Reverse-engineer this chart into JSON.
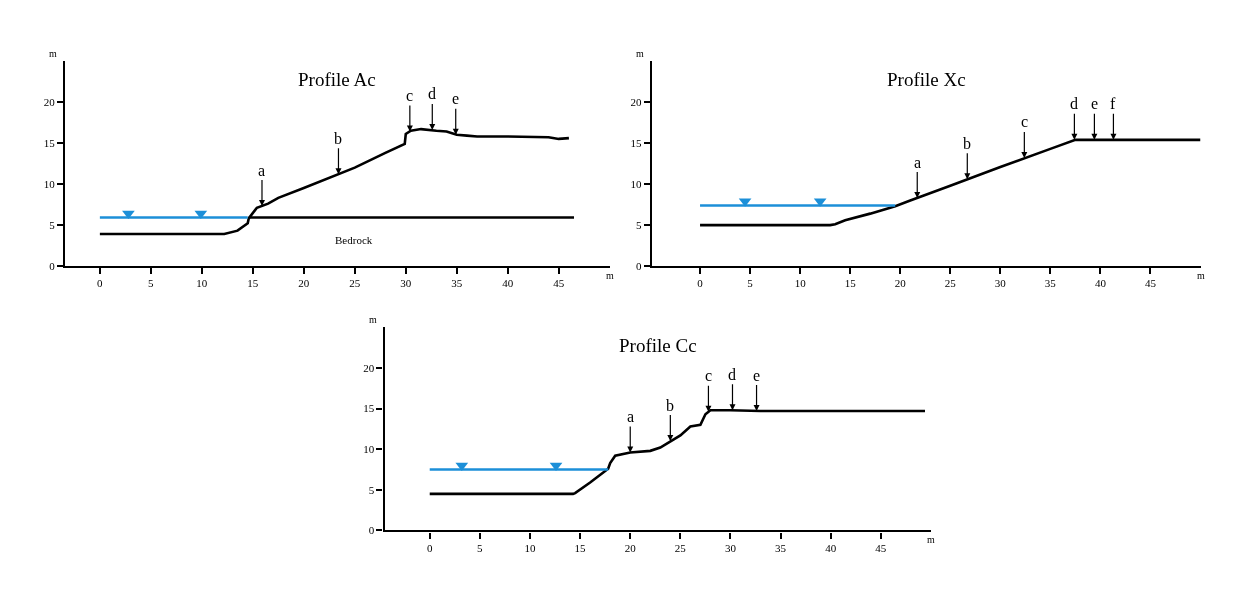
{
  "chart_data": [
    {
      "type": "line",
      "title": "Profile Ac",
      "xlabel": "m",
      "ylabel": "m",
      "xlim": [
        -3.4,
        50
      ],
      "ylim": [
        0,
        25
      ],
      "xticks": [
        0,
        5,
        10,
        15,
        20,
        25,
        30,
        35,
        40,
        45
      ],
      "yticks": [
        0,
        5,
        10,
        15,
        20
      ],
      "series": [
        {
          "x": [
            0,
            12.2,
            13.5,
            14.5,
            14.6,
            15.4,
            16.5,
            17.5,
            20,
            25,
            28,
            29.9,
            30,
            30.5,
            31.5,
            33,
            34,
            35,
            36,
            37,
            40,
            44,
            45,
            46
          ],
          "values": [
            3.9,
            3.9,
            4.3,
            5.2,
            5.8,
            7.1,
            7.6,
            8.3,
            9.5,
            12.0,
            13.8,
            14.9,
            16.1,
            16.5,
            16.7,
            16.5,
            16.4,
            16.0,
            15.9,
            15.8,
            15.8,
            15.7,
            15.5,
            15.6
          ],
          "color": "#000000"
        },
        {
          "x": [
            14.6,
            46.5
          ],
          "values": [
            5.9,
            5.9
          ],
          "color": "#000000"
        },
        {
          "x": [
            0,
            14.5
          ],
          "values": [
            5.9,
            5.9
          ],
          "color": "#1c8fd8"
        },
        {
          "type": "scatter",
          "marker": "triangle",
          "x": [
            2.8,
            9.9
          ],
          "values": [
            6.4,
            6.4
          ],
          "color": "#1c8fd8"
        }
      ],
      "annotations": [
        {
          "text": "a",
          "x": 15.9,
          "y": 7.3
        },
        {
          "text": "b",
          "x": 23.4,
          "y": 11.2
        },
        {
          "text": "c",
          "x": 30.4,
          "y": 16.4
        },
        {
          "text": "d",
          "x": 32.6,
          "y": 16.6
        },
        {
          "text": "e",
          "x": 34.9,
          "y": 16.0
        },
        {
          "text": "Bedrock",
          "x": 24.9,
          "y": 5.9
        }
      ]
    },
    {
      "type": "line",
      "title": "Profile Xc",
      "xlabel": "m",
      "ylabel": "m",
      "xlim": [
        -4.8,
        50
      ],
      "ylim": [
        0,
        25
      ],
      "xticks": [
        0,
        5,
        10,
        15,
        20,
        25,
        30,
        35,
        40,
        45
      ],
      "yticks": [
        0,
        5,
        10,
        15,
        20
      ],
      "series": [
        {
          "x": [
            0,
            13,
            13.5,
            14.5,
            17,
            19.5,
            21,
            25,
            30,
            35,
            37.5,
            50
          ],
          "values": [
            5.0,
            5.0,
            5.1,
            5.6,
            6.4,
            7.3,
            8.0,
            9.8,
            12.1,
            14.3,
            15.4,
            15.4
          ],
          "color": "#000000"
        },
        {
          "x": [
            0,
            19.5
          ],
          "values": [
            7.4,
            7.4
          ],
          "color": "#1c8fd8"
        },
        {
          "type": "scatter",
          "marker": "triangle",
          "x": [
            4.5,
            12
          ],
          "values": [
            7.9,
            7.9
          ],
          "color": "#1c8fd8"
        }
      ],
      "annotations": [
        {
          "text": "a",
          "x": 21.7,
          "y": 8.3
        },
        {
          "text": "b",
          "x": 26.7,
          "y": 10.6
        },
        {
          "text": "c",
          "x": 32.4,
          "y": 13.2
        },
        {
          "text": "d",
          "x": 37.4,
          "y": 15.4
        },
        {
          "text": "e",
          "x": 39.4,
          "y": 15.4
        },
        {
          "text": "f",
          "x": 41.3,
          "y": 15.4
        }
      ]
    },
    {
      "type": "line",
      "title": "Profile Cc",
      "xlabel": "m",
      "ylabel": "m",
      "xlim": [
        -4.5,
        50
      ],
      "ylim": [
        0,
        25
      ],
      "xticks": [
        0,
        5,
        10,
        15,
        20,
        25,
        30,
        35,
        40,
        45
      ],
      "yticks": [
        0,
        5,
        10,
        15,
        20
      ],
      "series": [
        {
          "x": [
            0,
            14.3,
            14.5,
            16,
            17.8,
            18,
            18.5,
            20,
            22,
            23,
            25,
            26,
            27,
            27.5,
            28,
            30,
            33,
            49.4
          ],
          "values": [
            4.5,
            4.5,
            4.6,
            5.9,
            7.6,
            8.3,
            9.2,
            9.6,
            9.8,
            10.2,
            11.7,
            12.8,
            13.0,
            14.3,
            14.8,
            14.8,
            14.7,
            14.7
          ],
          "color": "#000000"
        },
        {
          "x": [
            0,
            17.8
          ],
          "values": [
            7.5,
            7.5
          ],
          "color": "#1c8fd8"
        },
        {
          "type": "scatter",
          "marker": "triangle",
          "x": [
            3.2,
            12.6
          ],
          "values": [
            8.0,
            8.0
          ],
          "color": "#1c8fd8"
        }
      ],
      "annotations": [
        {
          "text": "a",
          "x": 20.0,
          "y": 9.6
        },
        {
          "text": "b",
          "x": 24.0,
          "y": 11.0
        },
        {
          "text": "c",
          "x": 27.8,
          "y": 14.6
        },
        {
          "text": "d",
          "x": 30.2,
          "y": 14.8
        },
        {
          "text": "e",
          "x": 32.6,
          "y": 14.7
        }
      ]
    }
  ]
}
